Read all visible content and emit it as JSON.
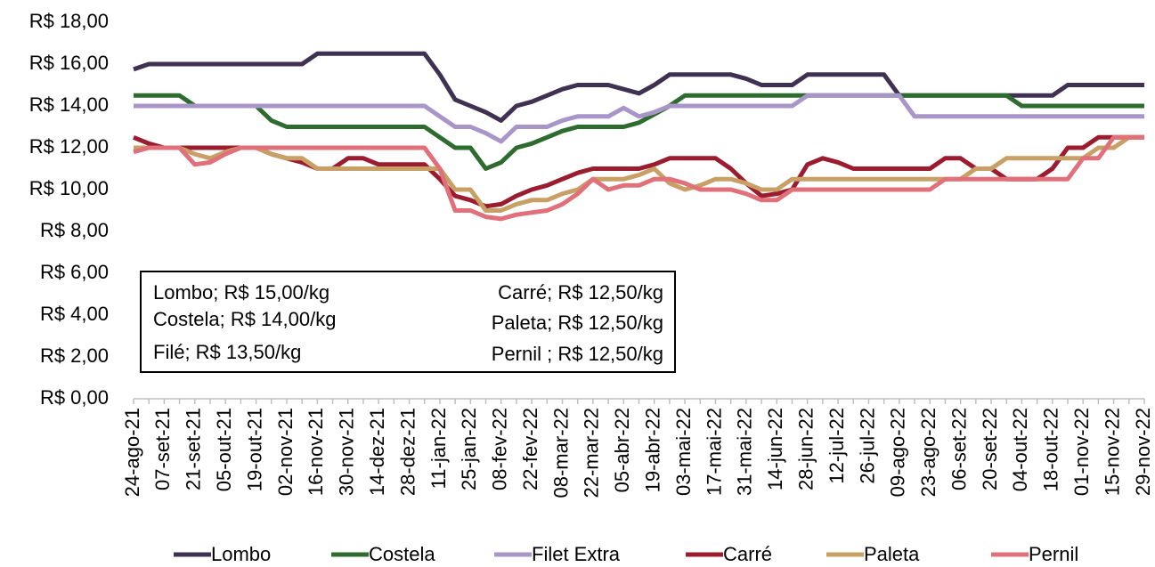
{
  "chart_data": {
    "type": "line",
    "categories": [
      "24-ago-21",
      null,
      "07-set-21",
      null,
      "21-set-21",
      null,
      "05-out-21",
      null,
      "19-out-21",
      null,
      "02-nov-21",
      null,
      "16-nov-21",
      null,
      "30-nov-21",
      null,
      "14-dez-21",
      null,
      "28-dez-21",
      null,
      "11-jan-22",
      null,
      "25-jan-22",
      null,
      "08-fev-22",
      null,
      "22-fev-22",
      null,
      "08-mar-22",
      null,
      "22-mar-22",
      null,
      "05-abr-22",
      null,
      "19-abr-22",
      null,
      "03-mai-22",
      null,
      "17-mai-22",
      null,
      "31-mai-22",
      null,
      "14-jun-22",
      null,
      "28-jun-22",
      null,
      "12-jul-22",
      null,
      "26-jul-22",
      null,
      "09-ago-22",
      null,
      "23-ago-22",
      null,
      "06-set-22",
      null,
      "20-set-22",
      null,
      "04-out-22",
      null,
      "18-out-22",
      null,
      "01-nov-22",
      null,
      "15-nov-22",
      null,
      "29-nov-22"
    ],
    "series": [
      {
        "name": "Lombo",
        "color": "#3f3151",
        "values": [
          15.75,
          16,
          16,
          16,
          16,
          16,
          16,
          16,
          16,
          16,
          16,
          16,
          16.5,
          16.5,
          16.5,
          16.5,
          16.5,
          16.5,
          16.5,
          16.5,
          15.5,
          14.3,
          14,
          13.7,
          13.3,
          14,
          14.2,
          14.5,
          14.8,
          15,
          15,
          15,
          14.8,
          14.6,
          15,
          15.5,
          15.5,
          15.5,
          15.5,
          15.5,
          15.3,
          15,
          15,
          15,
          15.5,
          15.5,
          15.5,
          15.5,
          15.5,
          15.5,
          14.5,
          14.5,
          14.5,
          14.5,
          14.5,
          14.5,
          14.5,
          14.5,
          14.5,
          14.5,
          14.5,
          15,
          15,
          15,
          15,
          15,
          15
        ]
      },
      {
        "name": "Costela",
        "color": "#2e6b2f",
        "values": [
          14.5,
          14.5,
          14.5,
          14.5,
          14,
          14,
          14,
          14,
          14,
          13.3,
          13,
          13,
          13,
          13,
          13,
          13,
          13,
          13,
          13,
          13,
          12.5,
          12,
          12,
          11,
          11.3,
          12,
          12.2,
          12.5,
          12.8,
          13,
          13,
          13,
          13,
          13.2,
          13.6,
          14,
          14.5,
          14.5,
          14.5,
          14.5,
          14.5,
          14.5,
          14.5,
          14.5,
          14.5,
          14.5,
          14.5,
          14.5,
          14.5,
          14.5,
          14.5,
          14.5,
          14.5,
          14.5,
          14.5,
          14.5,
          14.5,
          14.5,
          14,
          14,
          14,
          14,
          14,
          14,
          14,
          14,
          14
        ]
      },
      {
        "name": "Filet Extra",
        "color": "#a996c8",
        "values": [
          14,
          14,
          14,
          14,
          14,
          14,
          14,
          14,
          14,
          14,
          14,
          14,
          14,
          14,
          14,
          14,
          14,
          14,
          14,
          14,
          13.5,
          13,
          13,
          12.7,
          12.3,
          13,
          13,
          13,
          13.3,
          13.5,
          13.5,
          13.5,
          13.9,
          13.5,
          13.7,
          14,
          14,
          14,
          14,
          14,
          14,
          14,
          14,
          14,
          14.5,
          14.5,
          14.5,
          14.5,
          14.5,
          14.5,
          14.5,
          13.5,
          13.5,
          13.5,
          13.5,
          13.5,
          13.5,
          13.5,
          13.5,
          13.5,
          13.5,
          13.5,
          13.5,
          13.5,
          13.5,
          13.5,
          13.5
        ]
      },
      {
        "name": "Carré",
        "color": "#9b1c2e",
        "values": [
          12.5,
          12.2,
          12,
          12,
          12,
          12,
          12,
          12,
          12,
          11.7,
          11.5,
          11.3,
          11,
          11,
          11.5,
          11.5,
          11.2,
          11.2,
          11.2,
          11.2,
          10.5,
          9.7,
          9.5,
          9.2,
          9.3,
          9.7,
          10,
          10.2,
          10.5,
          10.8,
          11,
          11,
          11,
          11,
          11.2,
          11.5,
          11.5,
          11.5,
          11.5,
          11,
          10.3,
          9.7,
          9.8,
          10,
          11.2,
          11.5,
          11.3,
          11,
          11,
          11,
          11,
          11,
          11,
          11.5,
          11.5,
          11,
          11,
          10.5,
          10.5,
          10.5,
          11,
          12,
          12,
          12.5,
          12.5,
          12.5,
          12.5
        ]
      },
      {
        "name": "Paleta",
        "color": "#c8a065",
        "values": [
          12,
          12,
          12,
          12,
          11.7,
          11.5,
          11.8,
          12,
          12,
          11.7,
          11.5,
          11.5,
          11,
          11,
          11,
          11,
          11,
          11,
          11,
          11,
          11,
          10,
          10,
          9,
          9,
          9.3,
          9.5,
          9.5,
          9.8,
          10,
          10.5,
          10.5,
          10.5,
          10.7,
          11,
          10.3,
          10,
          10.2,
          10.5,
          10.5,
          10.3,
          10,
          10,
          10.5,
          10.5,
          10.5,
          10.5,
          10.5,
          10.5,
          10.5,
          10.5,
          10.5,
          10.5,
          10.5,
          10.5,
          11,
          11,
          11.5,
          11.5,
          11.5,
          11.5,
          11.5,
          11.5,
          12,
          12,
          12.5,
          12.5
        ]
      },
      {
        "name": "Pernil",
        "color": "#e0707a",
        "values": [
          11.8,
          12,
          12,
          12,
          11.2,
          11.3,
          11.7,
          12,
          12,
          12,
          12,
          12,
          12,
          12,
          12,
          12,
          12,
          12,
          12,
          12,
          11,
          9,
          9,
          8.7,
          8.6,
          8.8,
          8.9,
          9,
          9.3,
          9.8,
          10.5,
          10,
          10.2,
          10.2,
          10.5,
          10.5,
          10.3,
          10,
          10,
          10,
          9.8,
          9.5,
          9.5,
          10,
          10,
          10,
          10,
          10,
          10,
          10,
          10,
          10,
          10,
          10.5,
          10.5,
          10.5,
          10.5,
          10.5,
          10.5,
          10.5,
          10.5,
          10.5,
          11.5,
          11.5,
          12.5,
          12.5,
          12.5
        ]
      }
    ],
    "ylim": [
      0,
      18
    ],
    "yticks": [
      {
        "value": 0,
        "label": "R$ 0,00"
      },
      {
        "value": 2,
        "label": "R$ 2,00"
      },
      {
        "value": 4,
        "label": "R$ 4,00"
      },
      {
        "value": 6,
        "label": "R$ 6,00"
      },
      {
        "value": 8,
        "label": "R$ 8,00"
      },
      {
        "value": 10,
        "label": "R$ 10,00"
      },
      {
        "value": 12,
        "label": "R$ 12,00"
      },
      {
        "value": 14,
        "label": "R$ 14,00"
      },
      {
        "value": 16,
        "label": "R$ 16,00"
      },
      {
        "value": 18,
        "label": "R$ 18,00"
      }
    ],
    "annotations": [
      "Lombo; R$ 15,00/kg",
      "Costela; R$ 14,00/kg",
      "Filé; R$ 13,50/kg",
      "Carré; R$ 12,50/kg",
      "Paleta; R$ 12,50/kg",
      "Pernil ; R$ 12,50/kg"
    ],
    "legend": "bottom"
  }
}
